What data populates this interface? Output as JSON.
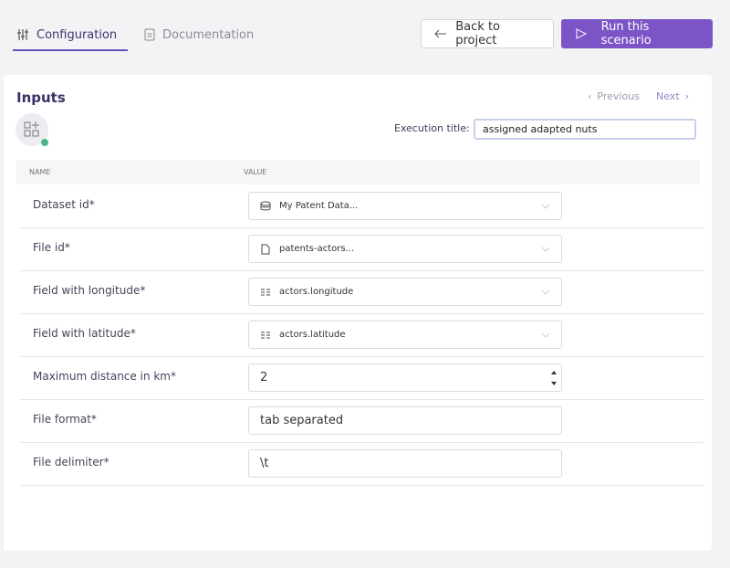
{
  "tabs": [
    "Configuration",
    "Documentation"
  ],
  "buttons": {
    "back": "Back to project",
    "run": "Run this scenario"
  },
  "panel": {
    "title": "Inputs",
    "previous": "Previous",
    "next": "Next",
    "execution_title_label": "Execution title:",
    "execution_title_value": "assigned adapted nuts"
  },
  "table": {
    "columns": [
      "NAME",
      "VALUE"
    ],
    "rows": [
      [
        "Dataset id*",
        "My Patent Data..."
      ],
      [
        "File id*",
        "patents-actors..."
      ],
      [
        "Field with longitude*",
        "actors.longitude"
      ],
      [
        "Field with latitude*",
        "actors.latitude"
      ],
      [
        "Maximum distance in km*",
        "2"
      ],
      [
        "File format*",
        "tab separated"
      ],
      [
        "File delimiter*",
        "\\t"
      ]
    ]
  }
}
